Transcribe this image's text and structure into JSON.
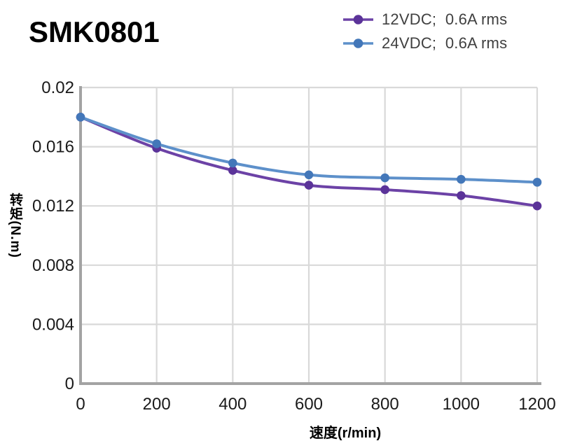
{
  "title": "SMK0801",
  "chart_data": {
    "type": "line",
    "title": "SMK0801",
    "xlabel": "速度(r/min)",
    "ylabel": "转矩(N.m)",
    "x": [
      0,
      200,
      400,
      600,
      800,
      1000,
      1200
    ],
    "series": [
      {
        "id": "12vdc",
        "name": "12VDC;  0.6A rms",
        "color": "#6C42A6",
        "marker_color": "#5B3399",
        "values": [
          0.018,
          0.0159,
          0.0144,
          0.0134,
          0.0131,
          0.0127,
          0.012
        ]
      },
      {
        "id": "24vdc",
        "name": "24VDC;  0.6A rms",
        "color": "#5D90CA",
        "marker_color": "#4377B9",
        "values": [
          0.018,
          0.0162,
          0.0149,
          0.0141,
          0.0139,
          0.0138,
          0.0136
        ]
      }
    ],
    "xlim": [
      0,
      1200
    ],
    "ylim": [
      0,
      0.02
    ],
    "xticks": {
      "values": [
        0,
        200,
        400,
        600,
        800,
        1000,
        1200
      ],
      "labels": [
        "0",
        "200",
        "400",
        "600",
        "800",
        "1000",
        "1200"
      ]
    },
    "yticks": {
      "values": [
        0,
        0.004,
        0.008,
        0.012,
        0.016,
        0.02
      ],
      "labels": [
        "0",
        "0.004",
        "0.008",
        "0.012",
        "0.016",
        "0.02"
      ]
    },
    "grid": true,
    "legend_position": "top-right",
    "colors": {
      "grid": "#D9D9D9",
      "axis": "#A3A3A3",
      "tick_text": "#1A1A1A",
      "legend_text": "#404040",
      "title_text": "#000000"
    }
  }
}
